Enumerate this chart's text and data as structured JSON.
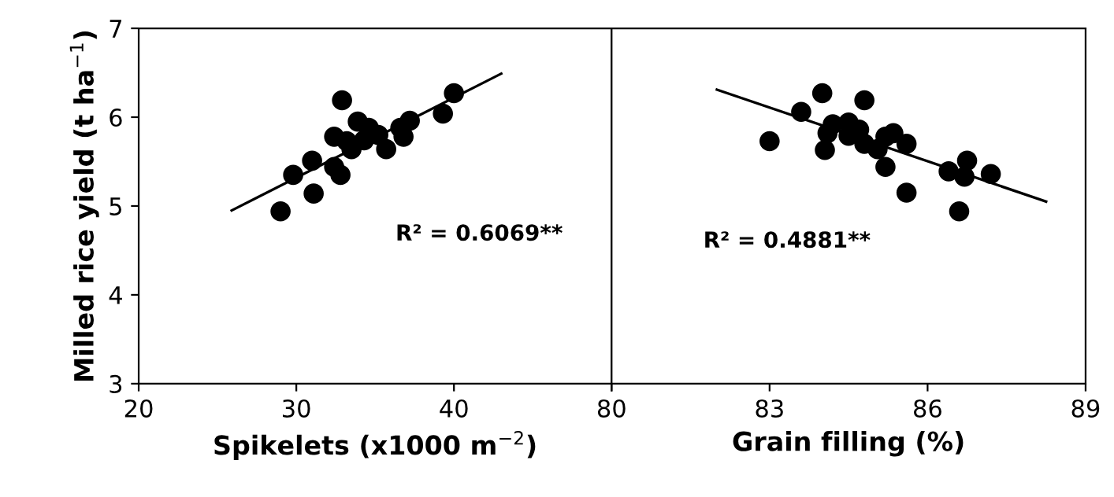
{
  "chart_data": [
    {
      "type": "scatter",
      "xlabel": "Spikelets (x1000 m$^{−2}$)",
      "ylabel": "Milled rice yield (t ha$^{−1}$)",
      "xlim": [
        20,
        50
      ],
      "xticks": [
        20,
        30,
        40,
        {
          "value": 50,
          "label": null
        }
      ],
      "ylim": [
        3,
        7
      ],
      "yticks": [
        3,
        4,
        5,
        6,
        7
      ],
      "grid": false,
      "legend": false,
      "annotations": [
        "R² = 0.6069**"
      ],
      "series": [
        {
          "color": "#000000",
          "marker": "circle",
          "x": [
            29.0,
            29.8,
            31.0,
            31.1,
            32.4,
            32.4,
            32.8,
            32.9,
            33.2,
            33.5,
            33.9,
            34.3,
            34.6,
            35.2,
            35.7,
            36.6,
            36.8,
            37.2,
            39.3,
            40.0
          ],
          "values": [
            4.94,
            5.35,
            5.51,
            5.14,
            5.78,
            5.44,
            5.35,
            6.19,
            5.73,
            5.64,
            5.95,
            5.74,
            5.88,
            5.8,
            5.64,
            5.88,
            5.78,
            5.96,
            6.04,
            6.27
          ]
        },
        {
          "type": "line",
          "color": "#000000",
          "x": [
            25.9,
            43.0
          ],
          "values": [
            4.95,
            6.49
          ]
        }
      ]
    },
    {
      "type": "scatter",
      "xlabel": "Grain filling (%)",
      "xlim": [
        80,
        89
      ],
      "xticks": [
        80,
        83,
        86,
        89
      ],
      "ylim": [
        3,
        7
      ],
      "yticks": [
        3,
        4,
        5,
        6,
        7
      ],
      "tick_labels": "x",
      "grid": false,
      "legend": false,
      "annotations": [
        "R² = 0.4881**"
      ],
      "series": [
        {
          "color": "#000000",
          "marker": "circle",
          "x": [
            83.0,
            83.6,
            84.0,
            84.05,
            84.1,
            84.2,
            84.5,
            84.5,
            84.7,
            84.8,
            84.8,
            85.05,
            85.2,
            85.2,
            85.35,
            85.6,
            85.6,
            86.4,
            86.6,
            86.7,
            86.75,
            87.2
          ],
          "values": [
            5.73,
            6.06,
            6.27,
            5.63,
            5.82,
            5.92,
            5.94,
            5.79,
            5.86,
            6.19,
            5.7,
            5.64,
            5.44,
            5.78,
            5.82,
            5.7,
            5.15,
            5.39,
            4.94,
            5.33,
            5.51,
            5.36
          ]
        },
        {
          "type": "line",
          "color": "#000000",
          "x": [
            82.0,
            88.25
          ],
          "values": [
            6.31,
            5.05
          ]
        }
      ]
    }
  ]
}
